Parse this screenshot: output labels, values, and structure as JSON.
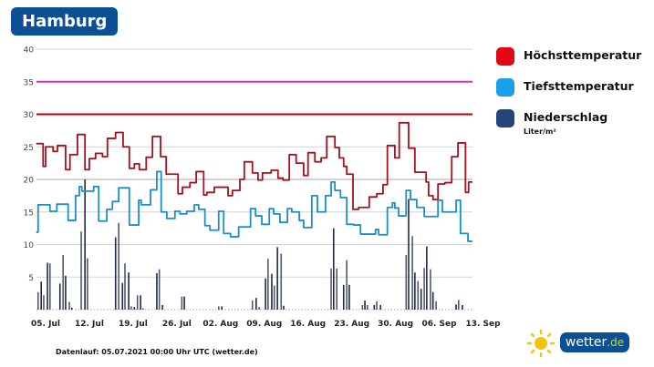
{
  "header": {
    "title": "Hamburg"
  },
  "legend": [
    {
      "label": "Höchsttemperatur",
      "color": "#e30613"
    },
    {
      "label": "Tiefsttemperatur",
      "color": "#1aa0e8"
    },
    {
      "label": "Niederschlag",
      "unit": "Liter/m²",
      "color": "#24457a"
    }
  ],
  "footer": {
    "text": "Datenlauf: 05.07.2021 00:00 Uhr UTC (wetter.de)"
  },
  "logo": {
    "name": "wetter",
    "tld": ".de"
  },
  "chart_data": {
    "type": "line",
    "title": "Hamburg",
    "x_unit": "days since 05. Jul",
    "xlim": [
      -1.5,
      68.3
    ],
    "ylim": [
      0,
      40
    ],
    "yticks": [
      5,
      10,
      15,
      20,
      25,
      30,
      35,
      40
    ],
    "xticks": [
      {
        "day": 0,
        "label": "05. Jul"
      },
      {
        "day": 7,
        "label": "12. Jul"
      },
      {
        "day": 14,
        "label": "19. Jul"
      },
      {
        "day": 21,
        "label": "26. Jul"
      },
      {
        "day": 28,
        "label": "02. Aug"
      },
      {
        "day": 35,
        "label": "09. Aug"
      },
      {
        "day": 42,
        "label": "16. Aug"
      },
      {
        "day": 49,
        "label": "23. Aug"
      },
      {
        "day": 56,
        "label": "30. Aug"
      },
      {
        "day": 63,
        "label": "06. Sep"
      },
      {
        "day": 70,
        "label": "13. Sep"
      }
    ],
    "grid": true,
    "legend_position": "right",
    "reference_lines": [
      {
        "value": 35,
        "color": "#cc33cc"
      },
      {
        "value": 30,
        "color": "#c00000"
      }
    ],
    "series": [
      {
        "name": "Höchsttemperatur",
        "kind": "step",
        "color": "#a5121c",
        "points": [
          [
            -1.5,
            25.5
          ],
          [
            -0.4,
            22
          ],
          [
            0,
            25
          ],
          [
            1.2,
            24.3
          ],
          [
            1.9,
            25.2
          ],
          [
            3.2,
            21.5
          ],
          [
            3.9,
            23.8
          ],
          [
            5.1,
            26.9
          ],
          [
            6.3,
            21.5
          ],
          [
            7.0,
            23.2
          ],
          [
            8.0,
            24
          ],
          [
            9.1,
            23.5
          ],
          [
            9.9,
            26.3
          ],
          [
            11.2,
            27.2
          ],
          [
            12.4,
            25
          ],
          [
            13.4,
            21.7
          ],
          [
            14.2,
            22.4
          ],
          [
            15.0,
            21.5
          ],
          [
            16.1,
            23.4
          ],
          [
            17.1,
            26.6
          ],
          [
            18.4,
            23.5
          ],
          [
            19.3,
            20.8
          ],
          [
            21.2,
            17.8
          ],
          [
            21.9,
            18.8
          ],
          [
            23.1,
            19.5
          ],
          [
            24.1,
            21.2
          ],
          [
            25.3,
            17.6
          ],
          [
            25.8,
            18
          ],
          [
            27.0,
            18.8
          ],
          [
            29.2,
            17.5
          ],
          [
            29.9,
            18.3
          ],
          [
            31.1,
            20
          ],
          [
            31.8,
            22.7
          ],
          [
            33.1,
            21
          ],
          [
            34.0,
            19.9
          ],
          [
            34.7,
            21
          ],
          [
            36.1,
            21.4
          ],
          [
            37.2,
            20.2
          ],
          [
            38.0,
            19.9
          ],
          [
            39.0,
            23.8
          ],
          [
            40.1,
            22.5
          ],
          [
            41.3,
            20.6
          ],
          [
            42.0,
            24.1
          ],
          [
            43.1,
            22.7
          ],
          [
            44.1,
            23.3
          ],
          [
            45.0,
            26.6
          ],
          [
            46.3,
            24.9
          ],
          [
            47.0,
            23.3
          ],
          [
            47.7,
            22
          ],
          [
            48.2,
            20.8
          ],
          [
            49.2,
            15.4
          ],
          [
            50.1,
            15.7
          ],
          [
            51.8,
            17.3
          ],
          [
            53.0,
            17.8
          ],
          [
            54.0,
            19.2
          ],
          [
            54.7,
            25.2
          ],
          [
            55.9,
            23.3
          ],
          [
            56.6,
            28.7
          ],
          [
            58.1,
            24.8
          ],
          [
            59.1,
            21.1
          ],
          [
            60.9,
            19.6
          ],
          [
            61.3,
            17.5
          ],
          [
            62.0,
            16.9
          ],
          [
            62.8,
            19.3
          ],
          [
            63.9,
            19.5
          ],
          [
            65.0,
            23.5
          ],
          [
            66.0,
            25.6
          ],
          [
            67.2,
            18
          ],
          [
            67.7,
            19.6
          ],
          [
            68.3,
            19.6
          ]
        ]
      },
      {
        "name": "Tiefsttemperatur",
        "kind": "step",
        "color": "#1a8fc9",
        "points": [
          [
            -1.5,
            11.9
          ],
          [
            -1.2,
            16.1
          ],
          [
            0.7,
            15.1
          ],
          [
            1.8,
            16.2
          ],
          [
            3.6,
            13.7
          ],
          [
            4.8,
            17.5
          ],
          [
            5.4,
            18.9
          ],
          [
            5.8,
            18.2
          ],
          [
            7.7,
            18.9
          ],
          [
            8.5,
            13.6
          ],
          [
            9.8,
            15.4
          ],
          [
            10.7,
            16.6
          ],
          [
            11.7,
            18.7
          ],
          [
            13.4,
            13
          ],
          [
            14.9,
            16.8
          ],
          [
            15.3,
            16.1
          ],
          [
            16.8,
            18.4
          ],
          [
            17.8,
            21.2
          ],
          [
            18.5,
            15
          ],
          [
            19.4,
            14
          ],
          [
            20.7,
            15.1
          ],
          [
            21.5,
            14.7
          ],
          [
            22.6,
            15.1
          ],
          [
            23.8,
            16.1
          ],
          [
            24.5,
            15.4
          ],
          [
            25.5,
            12.9
          ],
          [
            26.3,
            12.2
          ],
          [
            27.7,
            15.1
          ],
          [
            28.5,
            11.7
          ],
          [
            29.6,
            11.2
          ],
          [
            30.9,
            12.7
          ],
          [
            32.8,
            15.5
          ],
          [
            33.6,
            14.4
          ],
          [
            34.6,
            13.1
          ],
          [
            35.8,
            15.5
          ],
          [
            36.5,
            14.7
          ],
          [
            37.5,
            13.4
          ],
          [
            38.7,
            15.5
          ],
          [
            39.4,
            15
          ],
          [
            40.6,
            13.7
          ],
          [
            41.3,
            12.6
          ],
          [
            42.6,
            17.5
          ],
          [
            43.5,
            15
          ],
          [
            44.8,
            17.5
          ],
          [
            45.7,
            19.6
          ],
          [
            46.3,
            18.3
          ],
          [
            47.2,
            17.2
          ],
          [
            48.2,
            13.1
          ],
          [
            49.3,
            13
          ],
          [
            50.4,
            11.6
          ],
          [
            52.8,
            12.3
          ],
          [
            53.3,
            11.5
          ],
          [
            54.7,
            15.7
          ],
          [
            55.5,
            16.4
          ],
          [
            55.9,
            15.6
          ],
          [
            56.5,
            14.4
          ],
          [
            57.7,
            18.3
          ],
          [
            58.4,
            16.9
          ],
          [
            59.4,
            15.7
          ],
          [
            60.6,
            14.3
          ],
          [
            62.8,
            16.8
          ],
          [
            63.5,
            15
          ],
          [
            65.7,
            16.8
          ],
          [
            66.4,
            11.7
          ],
          [
            67.6,
            10.5
          ],
          [
            68.3,
            10.5
          ]
        ]
      },
      {
        "name": "Niederschlag",
        "kind": "bar",
        "unit": "Liter/m²",
        "color": "#2a3652",
        "points": [
          [
            -1.2,
            2.7
          ],
          [
            -0.7,
            4.3
          ],
          [
            -0.3,
            2.2
          ],
          [
            0.3,
            7.2
          ],
          [
            0.7,
            7.1
          ],
          [
            2.3,
            4.0
          ],
          [
            2.8,
            8.4
          ],
          [
            3.2,
            5.2
          ],
          [
            3.8,
            1.2
          ],
          [
            4.2,
            0.3
          ],
          [
            5.7,
            12.0
          ],
          [
            6.3,
            20.0
          ],
          [
            6.7,
            7.9
          ],
          [
            11.2,
            11.1
          ],
          [
            11.7,
            13.3
          ],
          [
            12.3,
            4.1
          ],
          [
            12.7,
            7.1
          ],
          [
            13.3,
            5.7
          ],
          [
            13.7,
            0.5
          ],
          [
            14.2,
            0.4
          ],
          [
            14.7,
            2.2
          ],
          [
            15.2,
            2.2
          ],
          [
            15.6,
            0.2
          ],
          [
            17.8,
            5.6
          ],
          [
            18.2,
            6.2
          ],
          [
            18.7,
            0.7
          ],
          [
            21.8,
            2.0
          ],
          [
            22.2,
            2.0
          ],
          [
            27.7,
            0.5
          ],
          [
            28.2,
            0.5
          ],
          [
            33.1,
            1.4
          ],
          [
            33.7,
            1.8
          ],
          [
            34.2,
            0.4
          ],
          [
            35.2,
            4.8
          ],
          [
            35.6,
            7.8
          ],
          [
            36.2,
            5.5
          ],
          [
            36.6,
            3.7
          ],
          [
            37.1,
            9.6
          ],
          [
            37.7,
            8.6
          ],
          [
            38.1,
            0.6
          ],
          [
            45.7,
            6.3
          ],
          [
            46.1,
            12.5
          ],
          [
            46.6,
            6.3
          ],
          [
            47.7,
            3.8
          ],
          [
            48.2,
            7.6
          ],
          [
            48.6,
            3.8
          ],
          [
            50.7,
            0.7
          ],
          [
            51.1,
            1.4
          ],
          [
            51.5,
            0.7
          ],
          [
            52.6,
            0.7
          ],
          [
            53.0,
            1.3
          ],
          [
            53.6,
            0.7
          ],
          [
            57.7,
            8.4
          ],
          [
            58.1,
            17.0
          ],
          [
            58.7,
            11.3
          ],
          [
            59.1,
            5.7
          ],
          [
            59.6,
            4.4
          ],
          [
            60.1,
            3.2
          ],
          [
            60.6,
            6.4
          ],
          [
            61.0,
            9.7
          ],
          [
            61.6,
            6.2
          ],
          [
            62.0,
            2.7
          ],
          [
            62.5,
            1.3
          ],
          [
            65.7,
            0.8
          ],
          [
            66.1,
            1.5
          ],
          [
            66.7,
            0.7
          ]
        ]
      }
    ]
  }
}
